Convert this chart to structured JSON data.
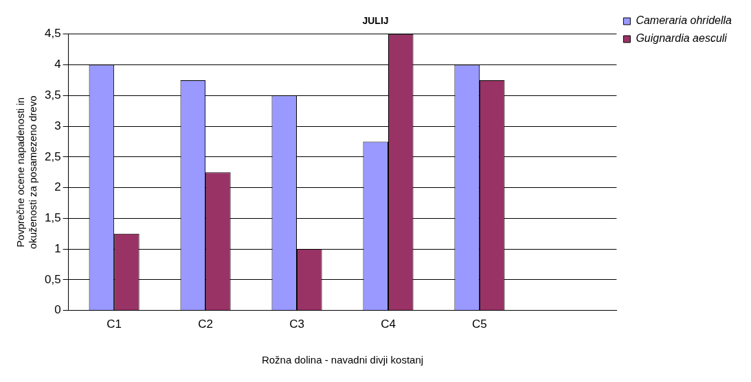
{
  "chart_data": {
    "type": "bar",
    "title": "JULIJ",
    "xlabel": "Rožna dolina - navadni divji kostanj",
    "ylabel": "Povprečne ocene napadenosti in\nokuženosti za posamezeno drevo",
    "categories": [
      "C1",
      "C2",
      "C3",
      "C4",
      "C5",
      null
    ],
    "series": [
      {
        "name": "Cameraria ohridella",
        "color": "#9999ff",
        "values": [
          4,
          3.75,
          3.5,
          2.75,
          4,
          null
        ]
      },
      {
        "name": "Guignardia aesculi",
        "color": "#993366",
        "values": [
          1.25,
          2.25,
          1,
          4.5,
          3.75,
          null
        ]
      }
    ],
    "ylim": [
      0,
      4.5
    ],
    "yticks": [
      0,
      {
        "value": 0.5,
        "label": "0,5"
      },
      1,
      {
        "value": 1.5,
        "label": "1,5"
      },
      2,
      {
        "value": 2.5,
        "label": "2,5"
      },
      3,
      {
        "value": 3.5,
        "label": "3,5"
      },
      4,
      {
        "value": 4.5,
        "label": "4,5"
      }
    ],
    "grid": "y",
    "legend": "top right"
  }
}
